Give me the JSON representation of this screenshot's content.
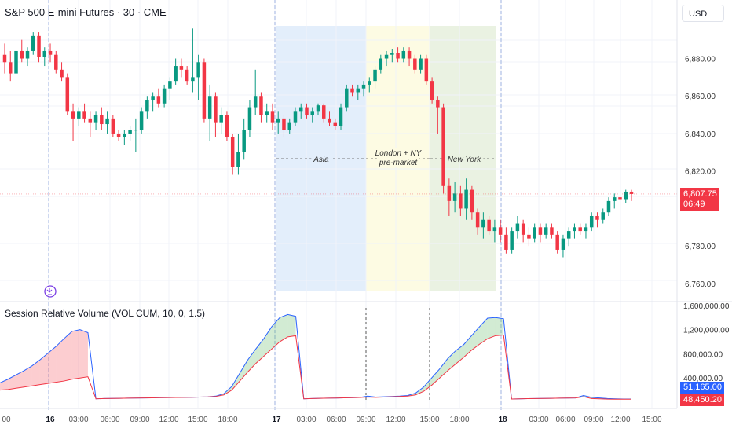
{
  "header": {
    "symbol_title": "S&P 500 E-mini Futures · 30 · CME",
    "currency": "USD"
  },
  "indicator": {
    "title": "Session Relative Volume (VOL CUM, 10, 0, 1.5)"
  },
  "price_axis": {
    "labels": [
      "6,880.00",
      "6,860.00",
      "6,840.00",
      "6,820.00",
      "6,780.00",
      "6,760.00"
    ]
  },
  "volume_axis": {
    "labels": [
      "1,600,000.00",
      "1,200,000.00",
      "800,000.00",
      "400,000.00"
    ]
  },
  "time_axis": {
    "labels": [
      "00",
      "16",
      "03:00",
      "06:00",
      "09:00",
      "12:00",
      "15:00",
      "18:00",
      "17",
      "03:00",
      "06:00",
      "09:00",
      "12:00",
      "15:00",
      "18:00",
      "18",
      "03:00",
      "06:00",
      "09:00",
      "12:00",
      "15:00"
    ]
  },
  "current_price": {
    "value": "6,807.75",
    "countdown": "06:49",
    "color": "#f23645"
  },
  "volume_values": {
    "current": "51,165.00",
    "average": "48,450.20",
    "current_color": "#2962ff",
    "average_color": "#f23645"
  },
  "sessions": [
    {
      "name": "Asia",
      "color": "#e3eefb"
    },
    {
      "name": "London + NY\npre-market",
      "color": "#fdfbe3"
    },
    {
      "name": "New York",
      "color": "#eaf2e2"
    }
  ],
  "colors": {
    "up": "#089981",
    "down": "#f23645",
    "grid": "#f0f3fa",
    "separator": "#9db2e0"
  },
  "chart_data": {
    "type": "candlestick",
    "title": "S&P 500 E-mini Futures · 30 · CME",
    "ylim": [
      6752,
      6902
    ],
    "y_ticks": [
      6760,
      6780,
      6820,
      6840,
      6860,
      6880
    ],
    "candles": [
      {
        "o": 6882,
        "h": 6888,
        "l": 6872,
        "c": 6878
      },
      {
        "o": 6878,
        "h": 6884,
        "l": 6868,
        "c": 6872
      },
      {
        "o": 6872,
        "h": 6886,
        "l": 6870,
        "c": 6884
      },
      {
        "o": 6884,
        "h": 6890,
        "l": 6878,
        "c": 6880
      },
      {
        "o": 6880,
        "h": 6886,
        "l": 6876,
        "c": 6884
      },
      {
        "o": 6884,
        "h": 6894,
        "l": 6882,
        "c": 6892
      },
      {
        "o": 6892,
        "h": 6894,
        "l": 6878,
        "c": 6881
      },
      {
        "o": 6881,
        "h": 6886,
        "l": 6876,
        "c": 6884
      },
      {
        "o": 6884,
        "h": 6888,
        "l": 6878,
        "c": 6882
      },
      {
        "o": 6882,
        "h": 6884,
        "l": 6872,
        "c": 6874
      },
      {
        "o": 6874,
        "h": 6878,
        "l": 6868,
        "c": 6870
      },
      {
        "o": 6870,
        "h": 6872,
        "l": 6850,
        "c": 6852
      },
      {
        "o": 6852,
        "h": 6856,
        "l": 6836,
        "c": 6848
      },
      {
        "o": 6848,
        "h": 6854,
        "l": 6844,
        "c": 6852
      },
      {
        "o": 6852,
        "h": 6856,
        "l": 6846,
        "c": 6848
      },
      {
        "o": 6848,
        "h": 6852,
        "l": 6838,
        "c": 6846
      },
      {
        "o": 6846,
        "h": 6852,
        "l": 6842,
        "c": 6850
      },
      {
        "o": 6850,
        "h": 6854,
        "l": 6842,
        "c": 6845
      },
      {
        "o": 6845,
        "h": 6852,
        "l": 6840,
        "c": 6848
      },
      {
        "o": 6848,
        "h": 6850,
        "l": 6838,
        "c": 6840
      },
      {
        "o": 6840,
        "h": 6842,
        "l": 6836,
        "c": 6838
      },
      {
        "o": 6838,
        "h": 6842,
        "l": 6834,
        "c": 6840
      },
      {
        "o": 6840,
        "h": 6844,
        "l": 6836,
        "c": 6842
      },
      {
        "o": 6842,
        "h": 6848,
        "l": 6830,
        "c": 6842
      },
      {
        "o": 6842,
        "h": 6854,
        "l": 6840,
        "c": 6852
      },
      {
        "o": 6852,
        "h": 6860,
        "l": 6848,
        "c": 6858
      },
      {
        "o": 6858,
        "h": 6862,
        "l": 6852,
        "c": 6860
      },
      {
        "o": 6860,
        "h": 6864,
        "l": 6854,
        "c": 6856
      },
      {
        "o": 6856,
        "h": 6866,
        "l": 6854,
        "c": 6864
      },
      {
        "o": 6864,
        "h": 6870,
        "l": 6858,
        "c": 6868
      },
      {
        "o": 6868,
        "h": 6880,
        "l": 6866,
        "c": 6876
      },
      {
        "o": 6876,
        "h": 6880,
        "l": 6870,
        "c": 6874
      },
      {
        "o": 6874,
        "h": 6876,
        "l": 6866,
        "c": 6868
      },
      {
        "o": 6868,
        "h": 6896,
        "l": 6862,
        "c": 6870
      },
      {
        "o": 6870,
        "h": 6882,
        "l": 6858,
        "c": 6878
      },
      {
        "o": 6878,
        "h": 6880,
        "l": 6846,
        "c": 6848
      },
      {
        "o": 6848,
        "h": 6866,
        "l": 6836,
        "c": 6860
      },
      {
        "o": 6860,
        "h": 6862,
        "l": 6838,
        "c": 6846
      },
      {
        "o": 6846,
        "h": 6854,
        "l": 6840,
        "c": 6850
      },
      {
        "o": 6850,
        "h": 6852,
        "l": 6836,
        "c": 6838
      },
      {
        "o": 6838,
        "h": 6840,
        "l": 6818,
        "c": 6822
      },
      {
        "o": 6822,
        "h": 6840,
        "l": 6818,
        "c": 6830
      },
      {
        "o": 6830,
        "h": 6848,
        "l": 6826,
        "c": 6842
      },
      {
        "o": 6842,
        "h": 6858,
        "l": 6838,
        "c": 6854
      },
      {
        "o": 6854,
        "h": 6874,
        "l": 6850,
        "c": 6860
      },
      {
        "o": 6860,
        "h": 6862,
        "l": 6846,
        "c": 6850
      },
      {
        "o": 6850,
        "h": 6856,
        "l": 6846,
        "c": 6852
      },
      {
        "o": 6852,
        "h": 6856,
        "l": 6842,
        "c": 6846
      },
      {
        "o": 6846,
        "h": 6852,
        "l": 6840,
        "c": 6848
      },
      {
        "o": 6848,
        "h": 6850,
        "l": 6838,
        "c": 6842
      },
      {
        "o": 6842,
        "h": 6848,
        "l": 6840,
        "c": 6846
      },
      {
        "o": 6846,
        "h": 6854,
        "l": 6844,
        "c": 6852
      },
      {
        "o": 6852,
        "h": 6856,
        "l": 6848,
        "c": 6854
      },
      {
        "o": 6854,
        "h": 6856,
        "l": 6848,
        "c": 6850
      },
      {
        "o": 6850,
        "h": 6854,
        "l": 6846,
        "c": 6852
      },
      {
        "o": 6852,
        "h": 6856,
        "l": 6850,
        "c": 6855
      },
      {
        "o": 6855,
        "h": 6856,
        "l": 6846,
        "c": 6848
      },
      {
        "o": 6848,
        "h": 6852,
        "l": 6844,
        "c": 6846
      },
      {
        "o": 6846,
        "h": 6848,
        "l": 6842,
        "c": 6844
      },
      {
        "o": 6844,
        "h": 6856,
        "l": 6842,
        "c": 6854
      },
      {
        "o": 6854,
        "h": 6866,
        "l": 6852,
        "c": 6864
      },
      {
        "o": 6864,
        "h": 6866,
        "l": 6860,
        "c": 6862
      },
      {
        "o": 6862,
        "h": 6866,
        "l": 6858,
        "c": 6864
      },
      {
        "o": 6864,
        "h": 6868,
        "l": 6860,
        "c": 6866
      },
      {
        "o": 6866,
        "h": 6870,
        "l": 6862,
        "c": 6868
      },
      {
        "o": 6868,
        "h": 6876,
        "l": 6864,
        "c": 6874
      },
      {
        "o": 6874,
        "h": 6882,
        "l": 6872,
        "c": 6880
      },
      {
        "o": 6880,
        "h": 6884,
        "l": 6876,
        "c": 6882
      },
      {
        "o": 6882,
        "h": 6885,
        "l": 6878,
        "c": 6883
      },
      {
        "o": 6883,
        "h": 6886,
        "l": 6878,
        "c": 6880
      },
      {
        "o": 6880,
        "h": 6886,
        "l": 6878,
        "c": 6884
      },
      {
        "o": 6884,
        "h": 6886,
        "l": 6876,
        "c": 6880
      },
      {
        "o": 6880,
        "h": 6882,
        "l": 6872,
        "c": 6874
      },
      {
        "o": 6874,
        "h": 6882,
        "l": 6872,
        "c": 6880
      },
      {
        "o": 6880,
        "h": 6882,
        "l": 6866,
        "c": 6868
      },
      {
        "o": 6868,
        "h": 6870,
        "l": 6856,
        "c": 6858
      },
      {
        "o": 6858,
        "h": 6860,
        "l": 6840,
        "c": 6854
      },
      {
        "o": 6854,
        "h": 6856,
        "l": 6808,
        "c": 6812
      },
      {
        "o": 6812,
        "h": 6816,
        "l": 6796,
        "c": 6804
      },
      {
        "o": 6804,
        "h": 6814,
        "l": 6798,
        "c": 6808
      },
      {
        "o": 6808,
        "h": 6812,
        "l": 6796,
        "c": 6800
      },
      {
        "o": 6800,
        "h": 6816,
        "l": 6794,
        "c": 6810
      },
      {
        "o": 6810,
        "h": 6812,
        "l": 6794,
        "c": 6798
      },
      {
        "o": 6798,
        "h": 6800,
        "l": 6786,
        "c": 6790
      },
      {
        "o": 6790,
        "h": 6798,
        "l": 6784,
        "c": 6794
      },
      {
        "o": 6794,
        "h": 6796,
        "l": 6786,
        "c": 6788
      },
      {
        "o": 6788,
        "h": 6794,
        "l": 6782,
        "c": 6790
      },
      {
        "o": 6790,
        "h": 6794,
        "l": 6782,
        "c": 6786
      },
      {
        "o": 6786,
        "h": 6790,
        "l": 6776,
        "c": 6778
      },
      {
        "o": 6778,
        "h": 6790,
        "l": 6776,
        "c": 6788
      },
      {
        "o": 6788,
        "h": 6796,
        "l": 6784,
        "c": 6792
      },
      {
        "o": 6792,
        "h": 6794,
        "l": 6782,
        "c": 6786
      },
      {
        "o": 6786,
        "h": 6790,
        "l": 6780,
        "c": 6784
      },
      {
        "o": 6784,
        "h": 6792,
        "l": 6782,
        "c": 6790
      },
      {
        "o": 6790,
        "h": 6792,
        "l": 6782,
        "c": 6786
      },
      {
        "o": 6786,
        "h": 6792,
        "l": 6784,
        "c": 6790
      },
      {
        "o": 6790,
        "h": 6792,
        "l": 6784,
        "c": 6786
      },
      {
        "o": 6786,
        "h": 6788,
        "l": 6776,
        "c": 6778
      },
      {
        "o": 6778,
        "h": 6786,
        "l": 6774,
        "c": 6784
      },
      {
        "o": 6784,
        "h": 6790,
        "l": 6780,
        "c": 6788
      },
      {
        "o": 6788,
        "h": 6792,
        "l": 6784,
        "c": 6790
      },
      {
        "o": 6790,
        "h": 6792,
        "l": 6786,
        "c": 6788
      },
      {
        "o": 6788,
        "h": 6792,
        "l": 6784,
        "c": 6790
      },
      {
        "o": 6790,
        "h": 6798,
        "l": 6788,
        "c": 6796
      },
      {
        "o": 6796,
        "h": 6798,
        "l": 6790,
        "c": 6794
      },
      {
        "o": 6794,
        "h": 6800,
        "l": 6792,
        "c": 6798
      },
      {
        "o": 6798,
        "h": 6806,
        "l": 6796,
        "c": 6804
      },
      {
        "o": 6804,
        "h": 6808,
        "l": 6800,
        "c": 6806
      },
      {
        "o": 6806,
        "h": 6808,
        "l": 6802,
        "c": 6805
      },
      {
        "o": 6805,
        "h": 6810,
        "l": 6803,
        "c": 6809
      },
      {
        "o": 6809,
        "h": 6810,
        "l": 6804,
        "c": 6807.75
      }
    ],
    "volume_ylim": [
      0,
      1650000
    ],
    "volume_ticks": [
      400000,
      800000,
      1200000,
      1600000
    ],
    "volume_series": [
      {
        "name": "Current cumulative volume",
        "color": "#2962ff",
        "values": [
          320000,
          380000,
          450000,
          520000,
          600000,
          700000,
          810000,
          920000,
          1050000,
          1170000,
          1200000,
          1150000,
          55000,
          60000,
          62000,
          64000,
          66000,
          68000,
          70000,
          72000,
          74000,
          76000,
          78000,
          80000,
          82000,
          84000,
          88000,
          100000,
          140000,
          260000,
          480000,
          700000,
          880000,
          1050000,
          1250000,
          1400000,
          1450000,
          1420000,
          55000,
          60000,
          63000,
          66000,
          69000,
          72000,
          75000,
          78000,
          100000,
          85000,
          90000,
          95000,
          100000,
          110000,
          150000,
          250000,
          400000,
          550000,
          720000,
          850000,
          950000,
          1100000,
          1250000,
          1390000,
          1400000,
          1380000,
          52000,
          55000,
          58000,
          60000,
          62000,
          64000,
          66000,
          68000,
          70000,
          110000,
          80000,
          70000,
          60000,
          55000,
          52000,
          51165
        ]
      },
      {
        "name": "Average cumulative volume",
        "color": "#f23645",
        "values": [
          200000,
          210000,
          230000,
          250000,
          270000,
          290000,
          310000,
          330000,
          350000,
          380000,
          400000,
          420000,
          55000,
          60000,
          62000,
          64000,
          66000,
          68000,
          70000,
          72000,
          74000,
          76000,
          78000,
          80000,
          82000,
          84000,
          88000,
          95000,
          120000,
          200000,
          350000,
          500000,
          640000,
          760000,
          880000,
          1000000,
          1080000,
          1100000,
          55000,
          60000,
          63000,
          66000,
          69000,
          72000,
          75000,
          78000,
          85000,
          80000,
          85000,
          90000,
          95000,
          100000,
          120000,
          180000,
          280000,
          400000,
          520000,
          630000,
          740000,
          860000,
          960000,
          1050000,
          1100000,
          1110000,
          52000,
          55000,
          58000,
          60000,
          62000,
          64000,
          66000,
          68000,
          70000,
          90000,
          60000,
          55000,
          50000,
          48000,
          48200,
          48450
        ]
      }
    ]
  }
}
